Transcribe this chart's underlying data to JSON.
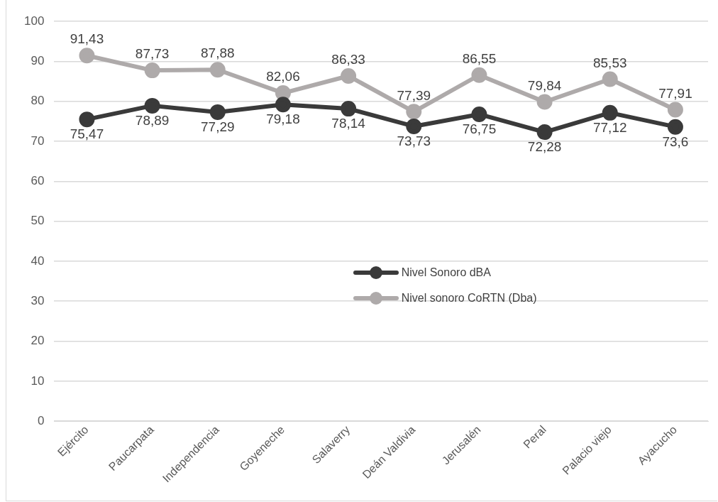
{
  "chart_data": {
    "type": "line",
    "categories": [
      "Ejército",
      "Paucarpata",
      "Independencia",
      "Goyeneche",
      "Salaverry",
      "Deán Valdivia",
      "Jerusalén",
      "Peral",
      "Palacio viejo",
      "Ayacucho"
    ],
    "series": [
      {
        "name": "Nivel Sonoro dBA",
        "color": "#3a3a3a",
        "values": [
          75.47,
          78.89,
          77.29,
          79.18,
          78.14,
          73.73,
          76.75,
          72.28,
          77.12,
          73.6
        ],
        "value_labels": [
          "75,47",
          "78,89",
          "77,29",
          "79,18",
          "78,14",
          "73,73",
          "76,75",
          "72,28",
          "77,12",
          "73,6"
        ]
      },
      {
        "name": "Nivel sonoro CoRTN (Dba)",
        "color": "#aeaaaa",
        "values": [
          91.43,
          87.73,
          87.88,
          82.06,
          86.33,
          77.39,
          86.55,
          79.84,
          85.53,
          77.91
        ],
        "value_labels": [
          "91,43",
          "87,73",
          "87,88",
          "82,06",
          "86,33",
          "77,39",
          "86,55",
          "79,84",
          "85,53",
          "77,91"
        ]
      }
    ],
    "ylim": [
      0,
      100
    ],
    "yticks": [
      0,
      10,
      20,
      30,
      40,
      50,
      60,
      70,
      80,
      90,
      100
    ],
    "grid": "y",
    "legend": "center",
    "marker": "circle",
    "line_style": "solid"
  }
}
